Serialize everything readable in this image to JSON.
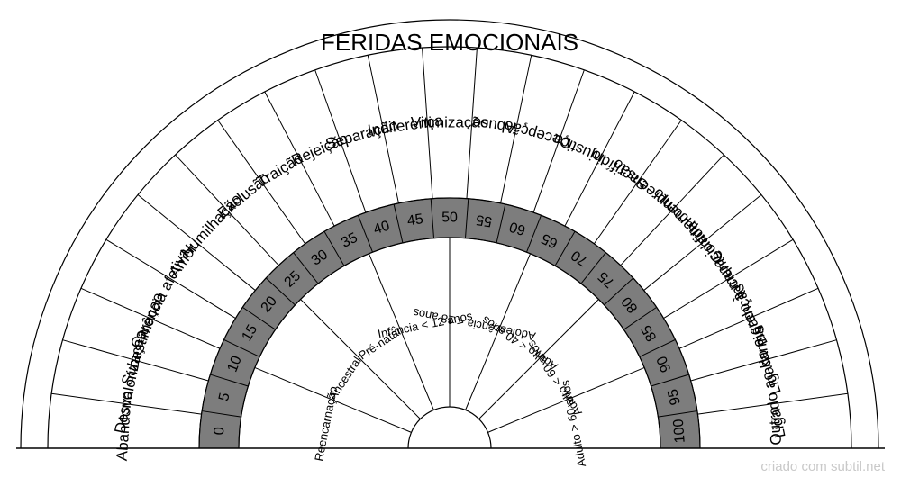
{
  "title": "FERIDAS EMOCIONAIS",
  "wounds": [
    "Abandono",
    "Desvalorizaçao",
    "Subestimaçao",
    "Carência afetiva",
    "Amor",
    "Humilhação",
    "Exclusão",
    "Traição",
    "Rejeição",
    "Separação",
    "Indiferença",
    "Vitimização",
    "Abuso",
    "Decepção",
    "Injustiça",
    "Sacrifício",
    "Incompreensão",
    "Confinamento",
    "Incapacidade",
    "Ligado à mente",
    "Ligado a crenças",
    "Ligado ao karma",
    "Outro"
  ],
  "scale": [
    "0",
    "5",
    "10",
    "15",
    "20",
    "25",
    "30",
    "35",
    "40",
    "45",
    "50",
    "55",
    "60",
    "65",
    "70",
    "75",
    "80",
    "85",
    "90",
    "95",
    "100"
  ],
  "origins": [
    "Reencarnação",
    "Ancestral",
    "Pré-natal",
    "Infância < 12 anos",
    "Adolescência < 18 anos",
    "Adulto < 40 anos",
    "Adulto < 60 anos",
    "Adulto > 60 anos"
  ],
  "footer": "criado com subtil.net",
  "colors": {
    "ring": "#7d7d7d",
    "line": "#000000",
    "background": "#ffffff"
  }
}
